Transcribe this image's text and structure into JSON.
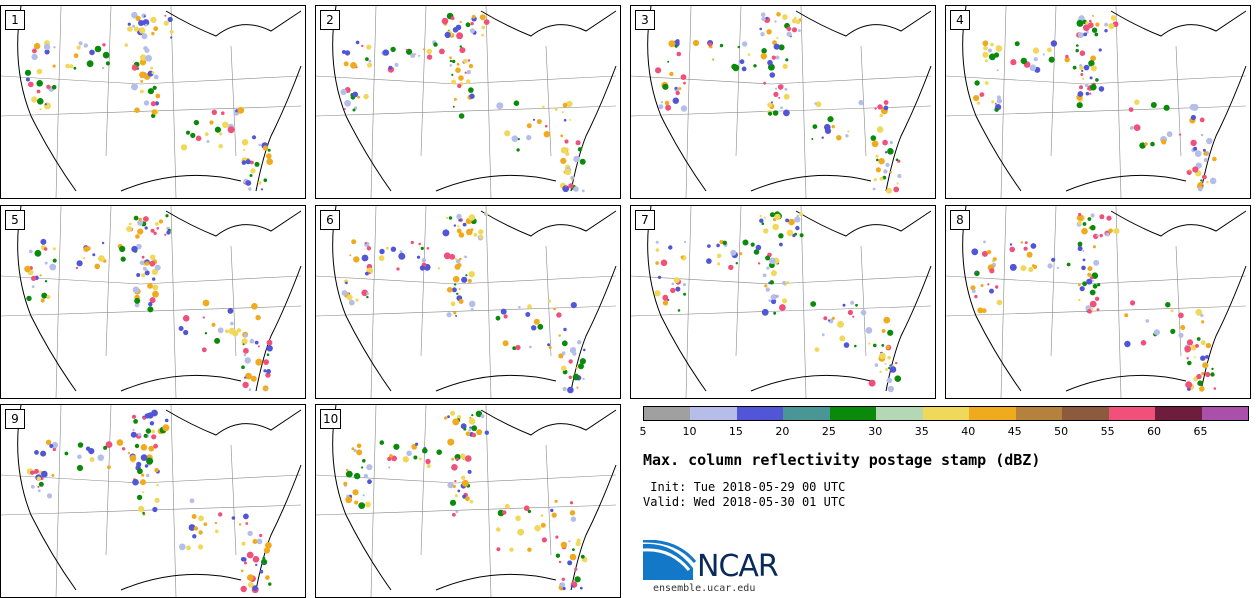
{
  "panels": [
    {
      "label": "1"
    },
    {
      "label": "2"
    },
    {
      "label": "3"
    },
    {
      "label": "4"
    },
    {
      "label": "5"
    },
    {
      "label": "6"
    },
    {
      "label": "7"
    },
    {
      "label": "8"
    },
    {
      "label": "9"
    },
    {
      "label": "10"
    }
  ],
  "colorbar": {
    "colors": [
      "#a0a0a0",
      "#b4bee8",
      "#5056d6",
      "#4a9696",
      "#0a8a0a",
      "#b4d8b4",
      "#f0d85a",
      "#f0aa1e",
      "#b4823c",
      "#8c5a3c",
      "#f0507a",
      "#6e1e3c",
      "#aa50aa"
    ],
    "tick_labels": [
      "5",
      "10",
      "15",
      "20",
      "25",
      "30",
      "35",
      "40",
      "45",
      "50",
      "55",
      "60",
      "65"
    ]
  },
  "title": "Max. column reflectivity postage stamp (dBZ)",
  "init_line": " Init: Tue 2018-05-29 00 UTC",
  "valid_line": "Valid: Wed 2018-05-30 01 UTC",
  "logo": {
    "text": "NCAR",
    "website": "ensemble.ucar.edu"
  }
}
